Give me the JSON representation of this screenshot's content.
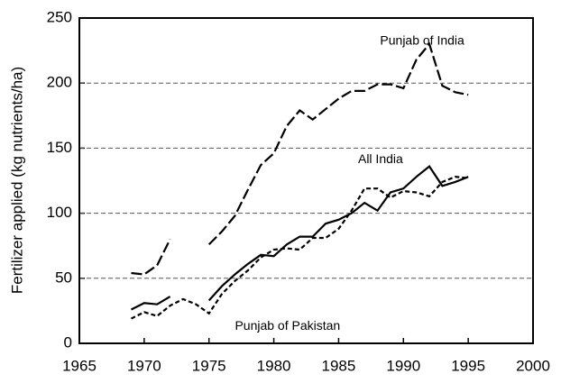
{
  "chart_data": {
    "type": "line",
    "ylabel": "Fertilizer applied (kg nutrients/ha)",
    "x": [
      1969,
      1970,
      1971,
      1972,
      1973,
      1974,
      1975,
      1976,
      1977,
      1978,
      1979,
      1980,
      1981,
      1982,
      1983,
      1984,
      1985,
      1986,
      1987,
      1988,
      1989,
      1990,
      1991,
      1992,
      1993,
      1994,
      1995
    ],
    "series": [
      {
        "name": "Punjab of India",
        "color": "#000000",
        "line_style": "long-dash",
        "values": [
          54,
          53,
          60,
          80,
          null,
          null,
          76,
          86,
          98,
          118,
          137,
          146,
          167,
          179,
          172,
          180,
          188,
          194,
          194,
          199,
          199,
          196,
          218,
          230,
          198,
          193,
          191
        ]
      },
      {
        "name": "All India",
        "color": "#000000",
        "line_style": "solid",
        "values": [
          26,
          31,
          30,
          36,
          null,
          null,
          33,
          44,
          53,
          61,
          68,
          67,
          76,
          82,
          82,
          92,
          95,
          100,
          108,
          102,
          116,
          119,
          128,
          136,
          121,
          124,
          128
        ]
      },
      {
        "name": "Punjab of Pakistan",
        "color": "#000000",
        "line_style": "short-dash",
        "values": [
          19,
          24,
          21,
          29,
          34,
          30,
          23,
          38,
          48,
          56,
          66,
          72,
          73,
          72,
          81,
          81,
          88,
          102,
          119,
          119,
          112,
          117,
          116,
          113,
          124,
          128,
          127
        ]
      }
    ],
    "xlim": [
      1965,
      2000
    ],
    "xticks": [
      1965,
      1970,
      1975,
      1980,
      1985,
      1990,
      1995,
      2000
    ],
    "ylim": [
      0,
      250
    ],
    "yticks": [
      0,
      50,
      100,
      150,
      200,
      250
    ],
    "grid": true
  }
}
